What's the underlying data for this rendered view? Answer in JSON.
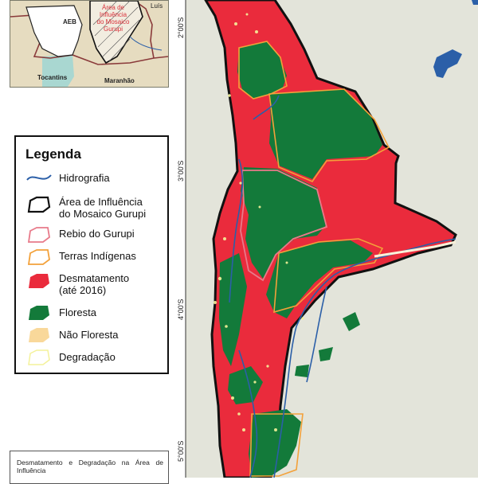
{
  "inset": {
    "labels": {
      "aeb": "AEB",
      "luis": "Luís",
      "tocantins": "Tocantins",
      "maranhao": "Maranhão",
      "area_line1": "Área de",
      "area_line2": "Influência",
      "area_line3": "do Mosaico",
      "area_line4": "Gurupi"
    }
  },
  "latitude_labels": [
    "2°00'S",
    "3°00'S",
    "4°00'S",
    "5°00'S"
  ],
  "legend": {
    "title": "Legenda",
    "items": [
      {
        "label": "Hidrografia",
        "symbol": "line",
        "color": "#2b5fa8"
      },
      {
        "label": "Área de Influência\ndo Mosaico Gurupi",
        "label_line1": "Área de Influência",
        "label_line2": "do Mosaico Gurupi",
        "symbol": "outline",
        "color": "#111111"
      },
      {
        "label": "Rebio do Gurupi",
        "symbol": "outline",
        "color": "#e87a8a"
      },
      {
        "label": "Terras Indígenas",
        "symbol": "outline",
        "color": "#f3a13a"
      },
      {
        "label_line1": "Desmatamento",
        "label_line2": "(até 2016)",
        "symbol": "fill",
        "color": "#ea2b3c"
      },
      {
        "label": "Floresta",
        "symbol": "fill",
        "color": "#137a3a"
      },
      {
        "label": "Não Floresta",
        "symbol": "fill",
        "color": "#f9d89a"
      },
      {
        "label": "Degradação",
        "symbol": "outline",
        "color": "#f4f29a"
      }
    ]
  },
  "description": {
    "text": "Desmatamento e Degradação na Área de Influência"
  },
  "colors": {
    "deforestation": "#ea2b3c",
    "forest": "#137a3a",
    "background": "#e3e4da",
    "water": "#2b5fa8",
    "indigenous": "#f3a13a",
    "rebio": "#e87a8a",
    "degradation": "#f4f29a"
  }
}
